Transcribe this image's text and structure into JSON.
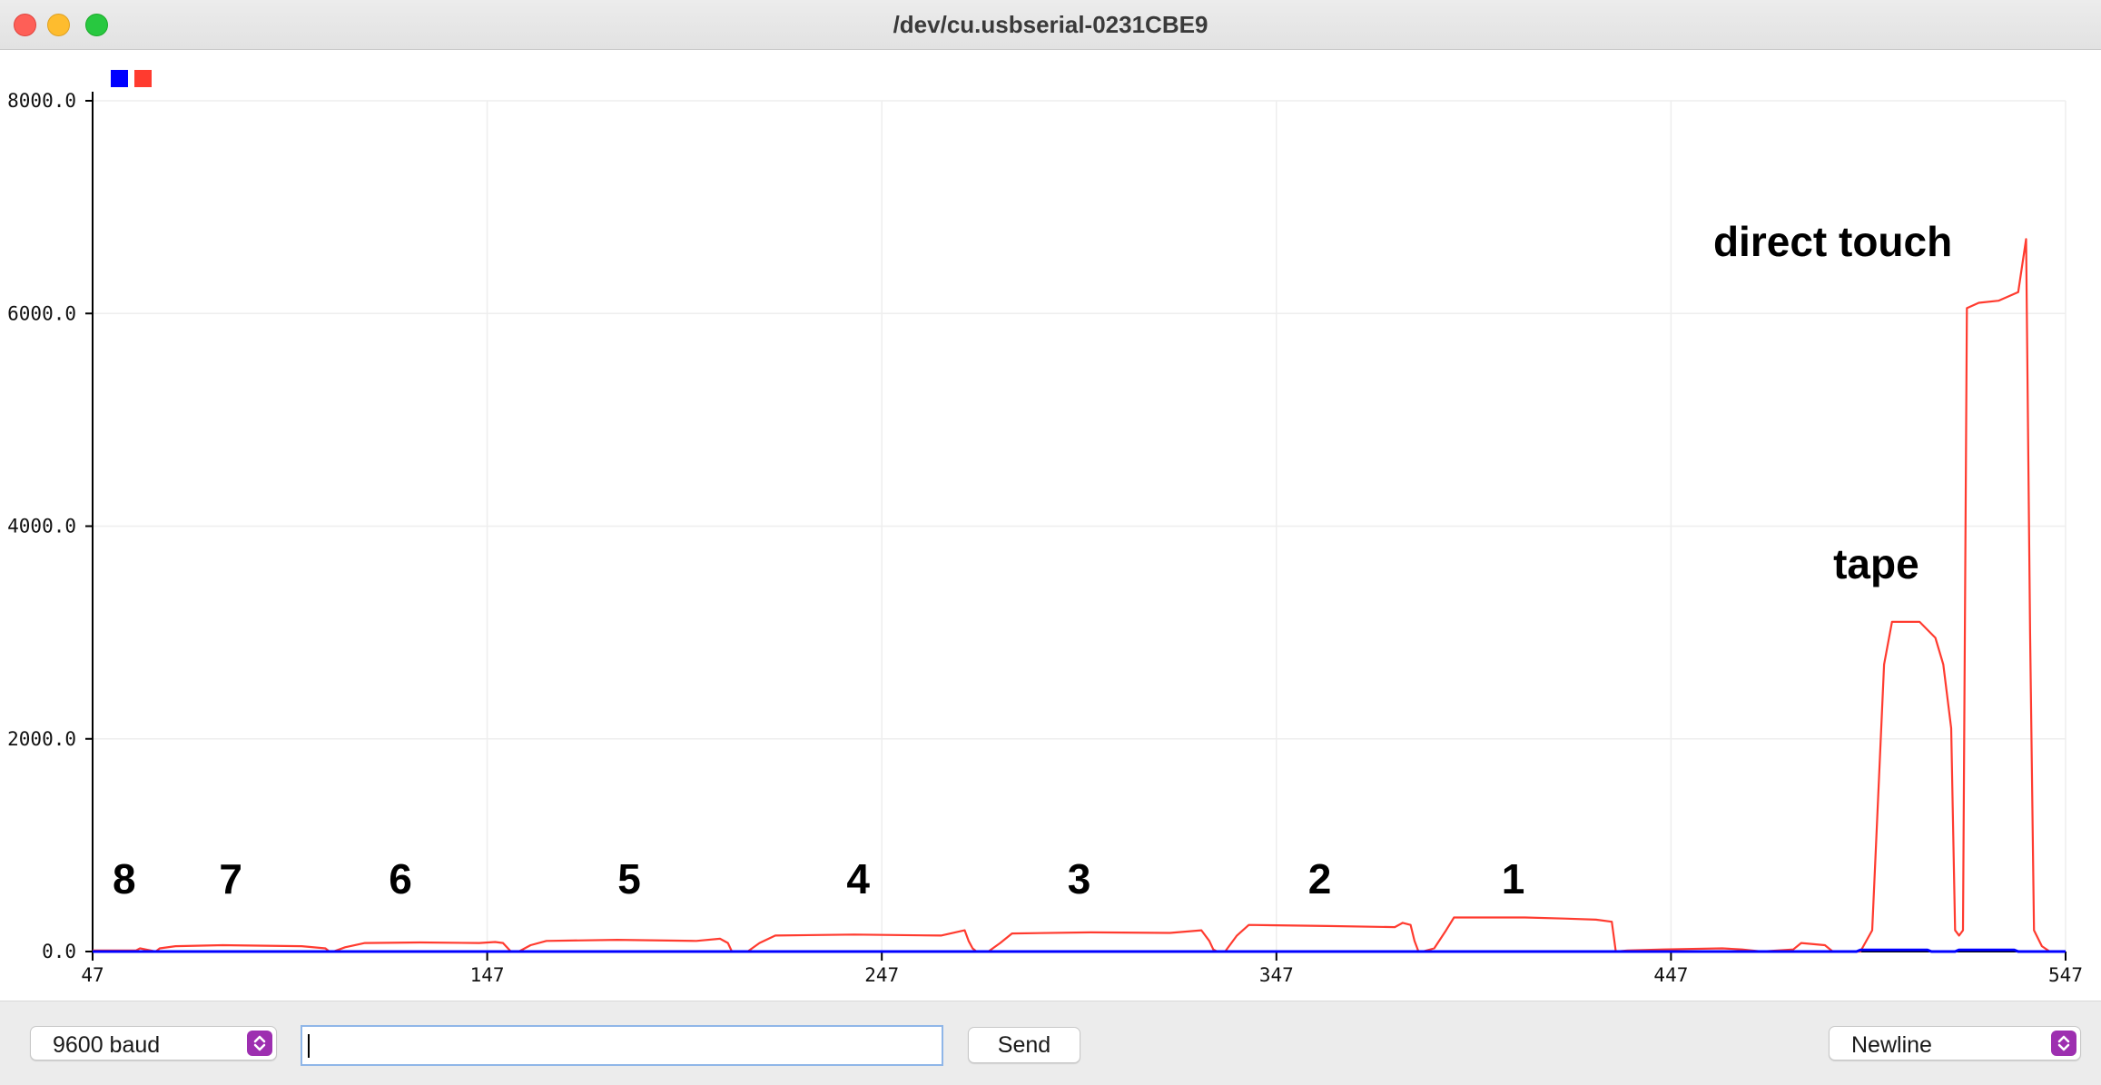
{
  "window": {
    "title": "/dev/cu.usbserial-0231CBE9"
  },
  "colors": {
    "series_blue": "#0000ff",
    "series_red": "#ff3b2f",
    "grid": "#eeeeee",
    "select_accent": "#9d2fb0"
  },
  "legend": [
    {
      "color": "#0000ff"
    },
    {
      "color": "#ff3b2f"
    }
  ],
  "annotations": [
    {
      "text": "8",
      "x": 55
    },
    {
      "text": "7",
      "x": 82
    },
    {
      "text": "6",
      "x": 125
    },
    {
      "text": "5",
      "x": 183
    },
    {
      "text": "4",
      "x": 241
    },
    {
      "text": "3",
      "x": 297
    },
    {
      "text": "2",
      "x": 358
    },
    {
      "text": "1",
      "x": 407
    },
    {
      "text": "tape",
      "x": 499
    },
    {
      "text": "direct touch",
      "x": 488
    }
  ],
  "chart_data": {
    "type": "line",
    "ylim": [
      0,
      8000
    ],
    "xlim": [
      47,
      547
    ],
    "yticks": [
      "0.0",
      "2000.0",
      "4000.0",
      "6000.0",
      "8000.0"
    ],
    "xticks": [
      "47",
      "147",
      "247",
      "347",
      "447",
      "547"
    ],
    "grid": true,
    "legend_position": "top-left",
    "series": [
      {
        "color": "#0000ff",
        "points": [
          [
            47,
            0
          ],
          [
            494,
            0
          ],
          [
            495,
            15
          ],
          [
            512,
            15
          ],
          [
            513,
            0
          ],
          [
            519,
            0
          ],
          [
            520,
            15
          ],
          [
            534,
            15
          ],
          [
            535,
            0
          ],
          [
            547,
            0
          ]
        ]
      },
      {
        "color": "#ff3b2f",
        "points": [
          [
            47,
            10
          ],
          [
            58,
            10
          ],
          [
            59,
            30
          ],
          [
            63,
            0
          ],
          [
            64,
            30
          ],
          [
            68,
            50
          ],
          [
            80,
            60
          ],
          [
            100,
            50
          ],
          [
            106,
            30
          ],
          [
            107,
            0
          ],
          [
            108,
            0
          ],
          [
            111,
            40
          ],
          [
            116,
            80
          ],
          [
            130,
            85
          ],
          [
            145,
            80
          ],
          [
            149,
            90
          ],
          [
            151,
            80
          ],
          [
            152,
            40
          ],
          [
            153,
            0
          ],
          [
            155,
            0
          ],
          [
            158,
            60
          ],
          [
            162,
            100
          ],
          [
            180,
            110
          ],
          [
            200,
            100
          ],
          [
            206,
            120
          ],
          [
            208,
            80
          ],
          [
            209,
            0
          ],
          [
            210,
            0
          ],
          [
            213,
            0
          ],
          [
            216,
            80
          ],
          [
            220,
            150
          ],
          [
            240,
            160
          ],
          [
            262,
            150
          ],
          [
            268,
            200
          ],
          [
            269,
            100
          ],
          [
            270,
            30
          ],
          [
            271,
            0
          ],
          [
            272,
            0
          ],
          [
            274,
            0
          ],
          [
            277,
            80
          ],
          [
            280,
            170
          ],
          [
            300,
            180
          ],
          [
            320,
            175
          ],
          [
            328,
            200
          ],
          [
            330,
            100
          ],
          [
            331,
            20
          ],
          [
            332,
            0
          ],
          [
            334,
            0
          ],
          [
            337,
            150
          ],
          [
            340,
            250
          ],
          [
            360,
            240
          ],
          [
            377,
            230
          ],
          [
            379,
            270
          ],
          [
            381,
            250
          ],
          [
            382,
            100
          ],
          [
            383,
            0
          ],
          [
            384,
            0
          ],
          [
            387,
            30
          ],
          [
            390,
            200
          ],
          [
            392,
            320
          ],
          [
            410,
            320
          ],
          [
            420,
            310
          ],
          [
            428,
            300
          ],
          [
            432,
            280
          ],
          [
            433,
            0
          ],
          [
            436,
            10
          ],
          [
            445,
            20
          ],
          [
            460,
            30
          ],
          [
            465,
            20
          ],
          [
            470,
            0
          ],
          [
            478,
            20
          ],
          [
            480,
            80
          ],
          [
            486,
            60
          ],
          [
            488,
            0
          ],
          [
            495,
            0
          ],
          [
            498,
            200
          ],
          [
            501,
            2700
          ],
          [
            503,
            3100
          ],
          [
            510,
            3100
          ],
          [
            514,
            2950
          ],
          [
            516,
            2700
          ],
          [
            518,
            2100
          ],
          [
            519,
            200
          ],
          [
            520,
            150
          ],
          [
            521,
            200
          ],
          [
            522,
            6050
          ],
          [
            525,
            6100
          ],
          [
            530,
            6120
          ],
          [
            535,
            6200
          ],
          [
            537,
            6700
          ],
          [
            538,
            3000
          ],
          [
            539,
            200
          ],
          [
            541,
            50
          ],
          [
            543,
            0
          ],
          [
            547,
            0
          ]
        ]
      }
    ]
  },
  "bottom_bar": {
    "baud": {
      "value": "9600 baud",
      "icon": "stepper-arrows-icon"
    },
    "input": {
      "value": ""
    },
    "send_label": "Send",
    "line_ending": {
      "value": "Newline",
      "icon": "stepper-arrows-icon"
    }
  }
}
